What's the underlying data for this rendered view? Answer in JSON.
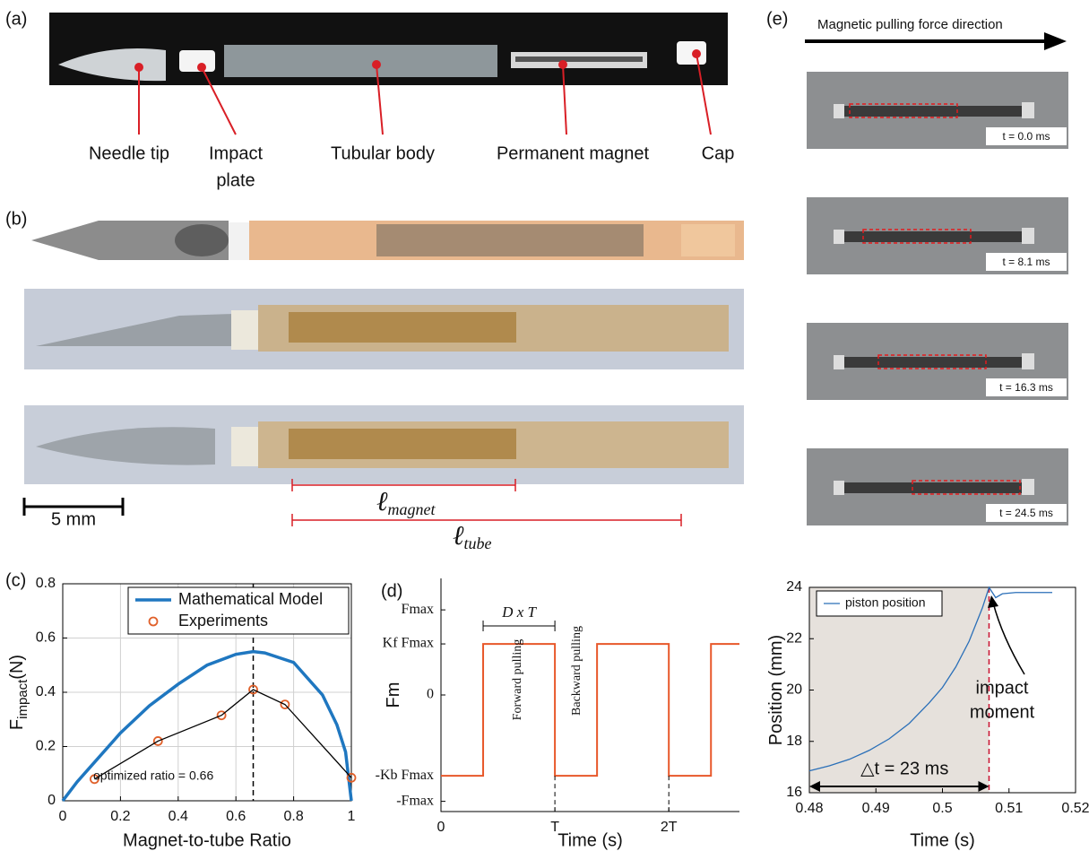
{
  "panels": {
    "a": "(a)",
    "b": "(b)",
    "c": "(c)",
    "d": "(d)",
    "e": "(e)"
  },
  "panel_a": {
    "labels": [
      "Needle tip",
      "Impact",
      "plate",
      "Tubular body",
      "Permanent magnet",
      "Cap"
    ]
  },
  "panel_b": {
    "scale_bar": "5 mm",
    "dimensions": [
      {
        "symbol": "ℓ",
        "sub": "magnet"
      },
      {
        "symbol": "ℓ",
        "sub": "tube"
      }
    ]
  },
  "panel_e": {
    "direction": "Magnetic pulling force direction",
    "frames": [
      "t = 0.0 ms",
      "t = 8.1 ms",
      "t = 16.3 ms",
      "t = 24.5 ms"
    ]
  },
  "chart_data": [
    {
      "type": "line",
      "xlabel": "Magnet-to-tube Ratio",
      "ylabel": "F",
      "ylabel_sub": "impact",
      "ylabel_unit": "(N)",
      "xlim": [
        0,
        1
      ],
      "ylim": [
        0,
        0.8
      ],
      "xticks": [
        0,
        0.2,
        0.4,
        0.6,
        0.8,
        1
      ],
      "yticks": [
        0,
        0.2,
        0.4,
        0.6,
        0.8
      ],
      "grid": true,
      "legend": "upper right",
      "vline": 0.66,
      "annotation": "optimized ratio = 0.66",
      "series": [
        {
          "name": "Mathematical Model",
          "color": "#1f77c0",
          "mode": "line",
          "x": [
            0,
            0.05,
            0.1,
            0.2,
            0.3,
            0.4,
            0.5,
            0.6,
            0.66,
            0.7,
            0.8,
            0.9,
            0.95,
            0.98,
            1
          ],
          "values": [
            0,
            0.07,
            0.13,
            0.25,
            0.35,
            0.43,
            0.5,
            0.54,
            0.55,
            0.545,
            0.51,
            0.39,
            0.28,
            0.18,
            0
          ]
        },
        {
          "name": "Experiments",
          "color": "#e0602a",
          "mode": "markers",
          "x": [
            0.11,
            0.33,
            0.55,
            0.66,
            0.77,
            1
          ],
          "values": [
            0.08,
            0.22,
            0.315,
            0.41,
            0.355,
            0.085
          ]
        },
        {
          "color": "#000000",
          "mode": "line",
          "x": [
            0.11,
            0.33,
            0.55,
            0.66,
            0.77,
            1
          ],
          "values": [
            0.08,
            0.22,
            0.315,
            0.41,
            0.355,
            0.085
          ]
        }
      ]
    },
    {
      "type": "step",
      "xlabel": "Time (s)",
      "ylabel": "Fm",
      "xlim": [
        0,
        2.62
      ],
      "ylim": [
        -1.37,
        1.37
      ],
      "xticks": [
        0,
        {
          "value": 1,
          "label": "T"
        },
        {
          "value": 2,
          "label": "2T"
        }
      ],
      "yticks": [
        {
          "value": 1,
          "label": "Fmax"
        },
        {
          "value": 0.6,
          "label": "Kf Fmax"
        },
        0,
        {
          "value": -0.95,
          "label": "-Kb Fmax"
        },
        {
          "value": -1.25,
          "label": "-Fmax"
        }
      ],
      "grid": false,
      "bracket": "D x T",
      "forward": "Forward pulling",
      "backward": "Backward pulling",
      "series": [
        {
          "color": "#e8582a",
          "mode": "line",
          "x": [
            0,
            0.37,
            0.37,
            1,
            1,
            1.37,
            1.37,
            2,
            2,
            2.37,
            2.37,
            2.62
          ],
          "values": [
            -0.95,
            -0.95,
            0.6,
            0.6,
            -0.95,
            -0.95,
            0.6,
            0.6,
            -0.95,
            -0.95,
            0.6,
            0.6
          ]
        }
      ]
    },
    {
      "type": "line",
      "xlabel": "Time (s)",
      "ylabel": "Position (mm)",
      "xlim": [
        0.48,
        0.52
      ],
      "ylim": [
        16,
        24
      ],
      "xticks": [
        0.48,
        0.49,
        0.5,
        0.51,
        0.52
      ],
      "yticks": [
        16,
        18,
        20,
        22,
        24
      ],
      "grid": false,
      "legend": "upper left",
      "vline": 0.507,
      "annotation": [
        "impact",
        "moment"
      ],
      "delta": "△t = 23 ms",
      "series": [
        {
          "name": "piston position",
          "color": "#2a6fb8",
          "mode": "line",
          "x": [
            0.48,
            0.483,
            0.486,
            0.489,
            0.492,
            0.495,
            0.498,
            0.5,
            0.502,
            0.504,
            0.506,
            0.507,
            0.508,
            0.509,
            0.511,
            0.513,
            0.5165
          ],
          "values": [
            16.85,
            17.05,
            17.3,
            17.65,
            18.1,
            18.7,
            19.5,
            20.1,
            20.9,
            21.9,
            23.2,
            24.0,
            23.6,
            23.75,
            23.8,
            23.8,
            23.8
          ]
        }
      ]
    }
  ]
}
